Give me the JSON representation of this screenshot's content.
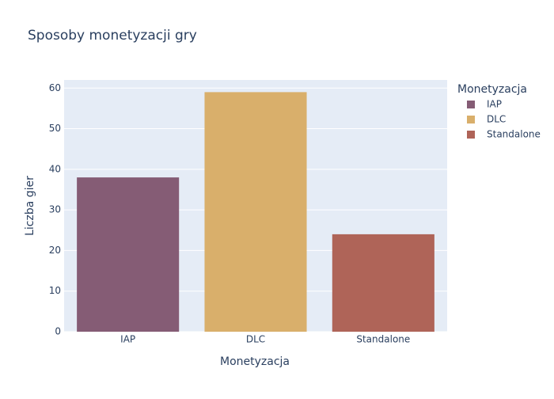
{
  "chart_data": {
    "type": "bar",
    "title": "Sposoby monetyzacji gry",
    "x_label": "Monetyzacja",
    "y_label": "Liczba gier",
    "legend_title": "Monetyzacja",
    "categories": [
      "IAP",
      "DLC",
      "Standalone"
    ],
    "values": [
      38,
      59,
      24
    ],
    "colors": [
      "#855C75",
      "#D9AF6B",
      "#AF6458"
    ],
    "ylim": [
      0,
      62
    ],
    "yticks": [
      0,
      10,
      20,
      30,
      40,
      50,
      60
    ],
    "grid": true,
    "legend": "right"
  }
}
